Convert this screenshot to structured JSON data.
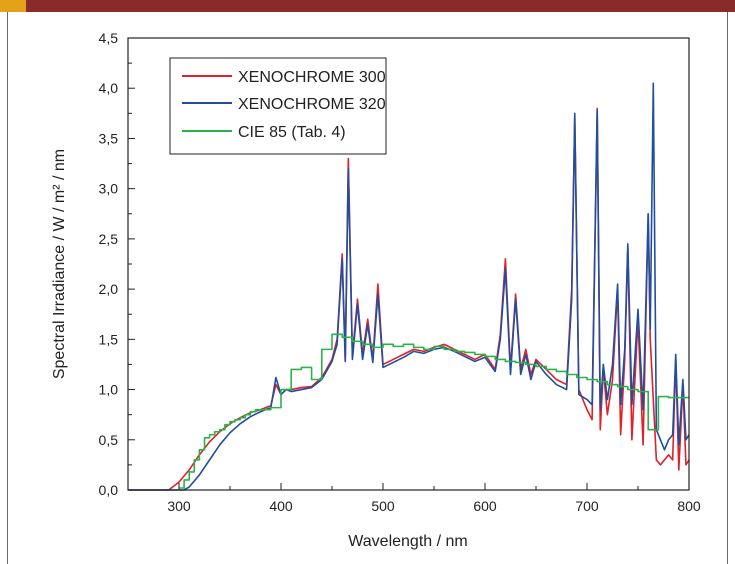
{
  "colors": {
    "banner": "#8b2a2a",
    "banner_accent": "#e3a21a",
    "xenochrome_300": "#e0202a",
    "xenochrome_320": "#1f4f9e",
    "cie_85": "#2db24a"
  },
  "chart_data": {
    "type": "line",
    "xlabel": "Wavelength / nm",
    "ylabel": "Spectral Irradiance / W / m² / nm",
    "xlim": [
      250,
      800
    ],
    "ylim": [
      0,
      4.5
    ],
    "xticks": [
      300,
      400,
      500,
      600,
      700,
      800
    ],
    "xtick_labels": [
      "300",
      "400",
      "500",
      "600",
      "700",
      "800"
    ],
    "yticks": [
      0,
      0.5,
      1.0,
      1.5,
      2.0,
      2.5,
      3.0,
      3.5,
      4.0,
      4.5
    ],
    "ytick_labels": [
      "0,0",
      "0,5",
      "1,0",
      "1,5",
      "2,0",
      "2,5",
      "3,0",
      "3,5",
      "4,0",
      "4,5"
    ],
    "grid": false,
    "legend_position": "top-left",
    "series": [
      {
        "name": "XENOCHROME 300",
        "style": "line",
        "x": [
          250,
          290,
          300,
          310,
          320,
          330,
          340,
          350,
          360,
          370,
          380,
          390,
          395,
          400,
          405,
          410,
          420,
          430,
          440,
          450,
          455,
          460,
          463,
          466,
          470,
          475,
          480,
          485,
          490,
          495,
          500,
          510,
          520,
          530,
          540,
          550,
          560,
          570,
          580,
          590,
          600,
          610,
          615,
          620,
          625,
          630,
          635,
          640,
          645,
          650,
          660,
          670,
          680,
          685,
          688,
          692,
          700,
          705,
          710,
          713,
          716,
          720,
          725,
          730,
          733,
          737,
          740,
          744,
          750,
          755,
          760,
          762,
          765,
          768,
          772,
          776,
          780,
          784,
          787,
          790,
          794,
          797,
          800
        ],
        "y": [
          0,
          0,
          0.08,
          0.2,
          0.35,
          0.48,
          0.58,
          0.66,
          0.72,
          0.77,
          0.8,
          0.84,
          1.05,
          0.95,
          1.0,
          1.0,
          1.02,
          1.03,
          1.12,
          1.3,
          1.5,
          2.35,
          1.3,
          3.3,
          1.35,
          1.9,
          1.35,
          1.7,
          1.3,
          2.05,
          1.25,
          1.3,
          1.35,
          1.4,
          1.38,
          1.42,
          1.45,
          1.4,
          1.35,
          1.3,
          1.35,
          1.2,
          1.55,
          2.3,
          1.2,
          1.95,
          1.2,
          1.4,
          1.15,
          1.3,
          1.2,
          1.1,
          1.05,
          2.0,
          3.7,
          1.0,
          0.8,
          0.7,
          3.8,
          0.6,
          1.2,
          0.75,
          1.1,
          2.0,
          0.55,
          1.3,
          2.4,
          0.5,
          1.7,
          0.45,
          2.75,
          1.5,
          0.9,
          0.3,
          0.25,
          0.3,
          0.35,
          0.3,
          1.3,
          0.2,
          1.05,
          0.25,
          0.3
        ]
      },
      {
        "name": "XENOCHROME 320",
        "style": "line",
        "x": [
          250,
          305,
          310,
          320,
          330,
          340,
          350,
          360,
          370,
          380,
          390,
          395,
          400,
          405,
          410,
          420,
          430,
          440,
          450,
          455,
          460,
          463,
          466,
          470,
          475,
          480,
          485,
          490,
          495,
          500,
          510,
          520,
          530,
          540,
          550,
          560,
          570,
          580,
          590,
          600,
          610,
          615,
          620,
          625,
          630,
          635,
          640,
          645,
          650,
          660,
          670,
          680,
          685,
          688,
          692,
          700,
          705,
          710,
          713,
          716,
          720,
          725,
          730,
          733,
          737,
          740,
          744,
          750,
          755,
          760,
          762,
          765,
          768,
          772,
          776,
          780,
          784,
          787,
          790,
          794,
          797,
          800
        ],
        "y": [
          0,
          0,
          0.03,
          0.15,
          0.3,
          0.45,
          0.57,
          0.66,
          0.73,
          0.78,
          0.82,
          1.12,
          0.95,
          1.0,
          0.98,
          1.0,
          1.02,
          1.1,
          1.28,
          1.45,
          2.3,
          1.28,
          3.2,
          1.3,
          1.85,
          1.3,
          1.65,
          1.27,
          1.95,
          1.22,
          1.27,
          1.32,
          1.38,
          1.36,
          1.4,
          1.42,
          1.38,
          1.33,
          1.28,
          1.32,
          1.18,
          1.5,
          2.2,
          1.15,
          1.9,
          1.15,
          1.35,
          1.1,
          1.28,
          1.15,
          1.05,
          1.0,
          1.9,
          3.75,
          0.95,
          0.9,
          0.85,
          3.78,
          0.8,
          1.25,
          0.9,
          1.25,
          2.05,
          0.85,
          1.4,
          2.45,
          0.85,
          1.8,
          0.8,
          2.75,
          1.6,
          4.05,
          0.6,
          0.5,
          0.4,
          0.5,
          0.55,
          1.35,
          0.45,
          1.1,
          0.5,
          0.55
        ]
      },
      {
        "name": "CIE 85 (Tab. 4)",
        "style": "step",
        "x": [
          300,
          305,
          310,
          315,
          320,
          325,
          330,
          335,
          340,
          345,
          350,
          355,
          360,
          365,
          370,
          375,
          380,
          390,
          400,
          410,
          420,
          430,
          440,
          450,
          460,
          470,
          480,
          490,
          500,
          510,
          520,
          530,
          540,
          550,
          560,
          570,
          580,
          590,
          600,
          610,
          620,
          630,
          640,
          650,
          660,
          670,
          680,
          690,
          700,
          710,
          720,
          730,
          740,
          750,
          760,
          770,
          780,
          790,
          800
        ],
        "y": [
          0.02,
          0.1,
          0.18,
          0.3,
          0.4,
          0.52,
          0.55,
          0.58,
          0.6,
          0.65,
          0.68,
          0.7,
          0.72,
          0.75,
          0.78,
          0.8,
          0.8,
          0.82,
          1.0,
          1.2,
          1.22,
          1.1,
          1.4,
          1.55,
          1.52,
          1.48,
          1.45,
          1.42,
          1.45,
          1.43,
          1.45,
          1.42,
          1.4,
          1.43,
          1.4,
          1.38,
          1.37,
          1.35,
          1.33,
          1.3,
          1.28,
          1.27,
          1.25,
          1.23,
          1.2,
          1.18,
          1.15,
          1.12,
          1.1,
          1.08,
          1.05,
          1.03,
          1.0,
          0.98,
          0.6,
          0.93,
          0.92,
          0.92,
          0.92
        ]
      }
    ]
  }
}
